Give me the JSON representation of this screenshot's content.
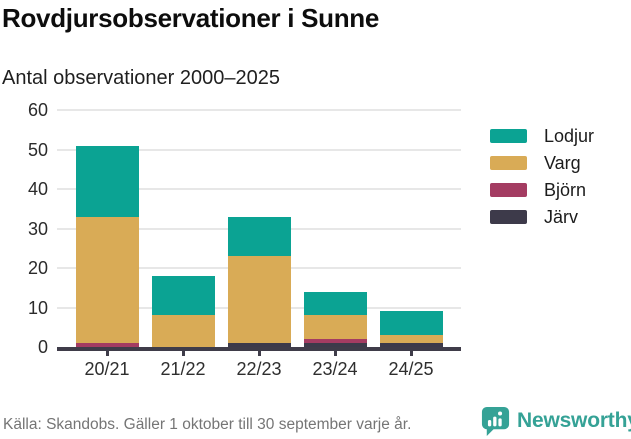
{
  "title": "Rovdjursobservationer i Sunne",
  "subtitle": "Antal observationer 2000–2025",
  "chart_data": {
    "type": "bar",
    "stacked": true,
    "categories": [
      "20/21",
      "21/22",
      "22/23",
      "23/24",
      "24/25"
    ],
    "series": [
      {
        "name": "Lodjur",
        "color": "#0ba393",
        "values": [
          18,
          10,
          10,
          6,
          6
        ]
      },
      {
        "name": "Varg",
        "color": "#d9ab56",
        "values": [
          32,
          8,
          22,
          6,
          2
        ]
      },
      {
        "name": "Björn",
        "color": "#a43c62",
        "values": [
          1,
          0,
          0,
          1,
          0
        ]
      },
      {
        "name": "Järv",
        "color": "#3d3a4a",
        "values": [
          0,
          0,
          1,
          1,
          1
        ]
      }
    ],
    "stack_order_bottom_to_top": [
      "Järv",
      "Björn",
      "Varg",
      "Lodjur"
    ],
    "totals": [
      51,
      18,
      33,
      14,
      9
    ],
    "ylim": [
      0,
      60
    ],
    "yticks": [
      0,
      10,
      20,
      30,
      40,
      50,
      60
    ],
    "grid": "horizontal",
    "legend_position": "right"
  },
  "footer": {
    "source": "Källa: Skandobs. Gäller 1 oktober till 30 september varje år.",
    "brand": "Newsworthy"
  },
  "colors": {
    "background": "#ffffff",
    "axis": "#3f3c49",
    "gridline": "#e7e7e7",
    "tick_text": "#2b2b2b",
    "title_text": "#0d0d0d",
    "muted_text": "#757575",
    "brand_teal": "#35a296"
  }
}
